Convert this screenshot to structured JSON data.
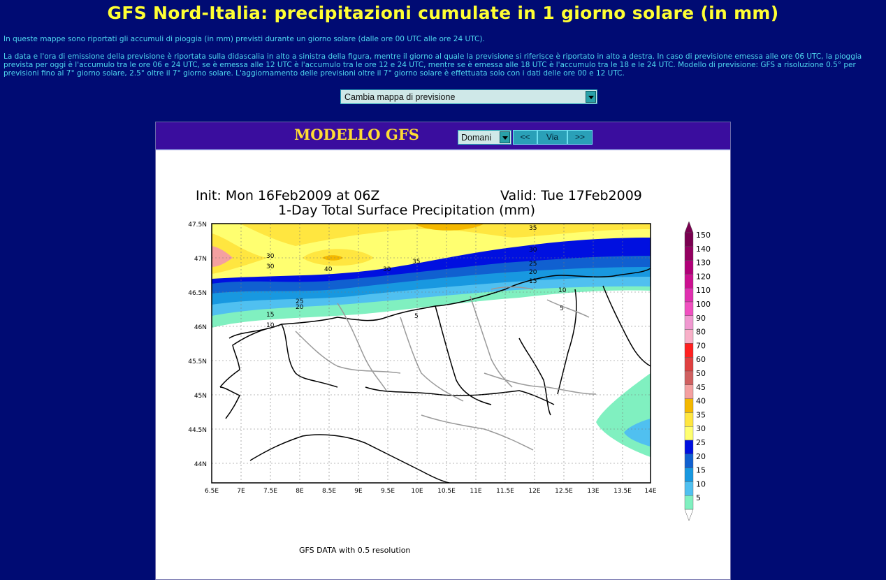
{
  "page": {
    "title": "GFS Nord-Italia: precipitazioni cumulate in 1 giorno solare (in mm)",
    "intro1": "In queste mappe sono riportati gli accumuli di pioggia (in mm) previsti durante un giorno solare (dalle ore 00 UTC alle ore 24 UTC).",
    "intro2": "La data e l'ora di emissione della previsione è riportata sulla didascalia in alto a sinistra della figura, mentre il giorno al quale la previsione si riferisce è riportato in alto a destra. In caso di previsione emessa alle ore 06 UTC, la pioggia prevista per oggi è l'accumulo tra le ore 06 e 24 UTC, se è emessa alle 12 UTC è l'accumulo tra le ore 12 e 24 UTC, mentre se è emessa alle 18 UTC è l'accumulo tra le 18 e le 24 UTC. Modello di previsione: GFS a risoluzione 0.5° per previsioni fino al 7° giorno solare, 2.5° oltre il 7° giorno solare. L'aggiornamento delle previsioni oltre il 7° giorno solare è effettuata solo con i dati delle ore 00 e 12 UTC.",
    "map_select": "Cambia mappa di previsione"
  },
  "panel": {
    "heading": "MODELLO GFS",
    "day_select": "Domani",
    "prev": "<<",
    "go": "Via",
    "next": ">>"
  },
  "map": {
    "init": "Init: Mon 16Feb2009 at 06Z",
    "valid": "Valid: Tue 17Feb2009",
    "subtitle": "1-Day Total Surface Precipitation (mm)",
    "footer": "GFS DATA with 0.5 resolution",
    "lat_ticks": [
      "47.5N",
      "47N",
      "46.5N",
      "46N",
      "45.5N",
      "45N",
      "44.5N",
      "44N"
    ],
    "lon_ticks": [
      "6.5E",
      "7E",
      "7.5E",
      "8E",
      "8.5E",
      "9E",
      "9.5E",
      "10E",
      "10.5E",
      "11E",
      "11.5E",
      "12E",
      "12.5E",
      "13E",
      "13.5E",
      "14E"
    ],
    "contour_labels": [
      "30",
      "30",
      "40",
      "30",
      "35",
      "35",
      "30",
      "25",
      "20",
      "15",
      "10",
      "25",
      "20",
      "15",
      "10",
      "5",
      "5"
    ],
    "legend": [
      {
        "value": "150",
        "color": "#7a0050"
      },
      {
        "value": "140",
        "color": "#930060"
      },
      {
        "value": "130",
        "color": "#b00078"
      },
      {
        "value": "120",
        "color": "#cc1090"
      },
      {
        "value": "110",
        "color": "#e030b0"
      },
      {
        "value": "100",
        "color": "#f050c0"
      },
      {
        "value": "90",
        "color": "#f098d0"
      },
      {
        "value": "80",
        "color": "#f8b0c8"
      },
      {
        "value": "70",
        "color": "#ff2020"
      },
      {
        "value": "60",
        "color": "#e04040"
      },
      {
        "value": "50",
        "color": "#d06060"
      },
      {
        "value": "45",
        "color": "#f4a0a0"
      },
      {
        "value": "40",
        "color": "#f4b800"
      },
      {
        "value": "35",
        "color": "#ffe640"
      },
      {
        "value": "30",
        "color": "#ffff70"
      },
      {
        "value": "25",
        "color": "#0010e0"
      },
      {
        "value": "20",
        "color": "#1060d0"
      },
      {
        "value": "15",
        "color": "#1898e0"
      },
      {
        "value": "10",
        "color": "#50c0f0"
      },
      {
        "value": "5",
        "color": "#80f0c0"
      }
    ]
  }
}
